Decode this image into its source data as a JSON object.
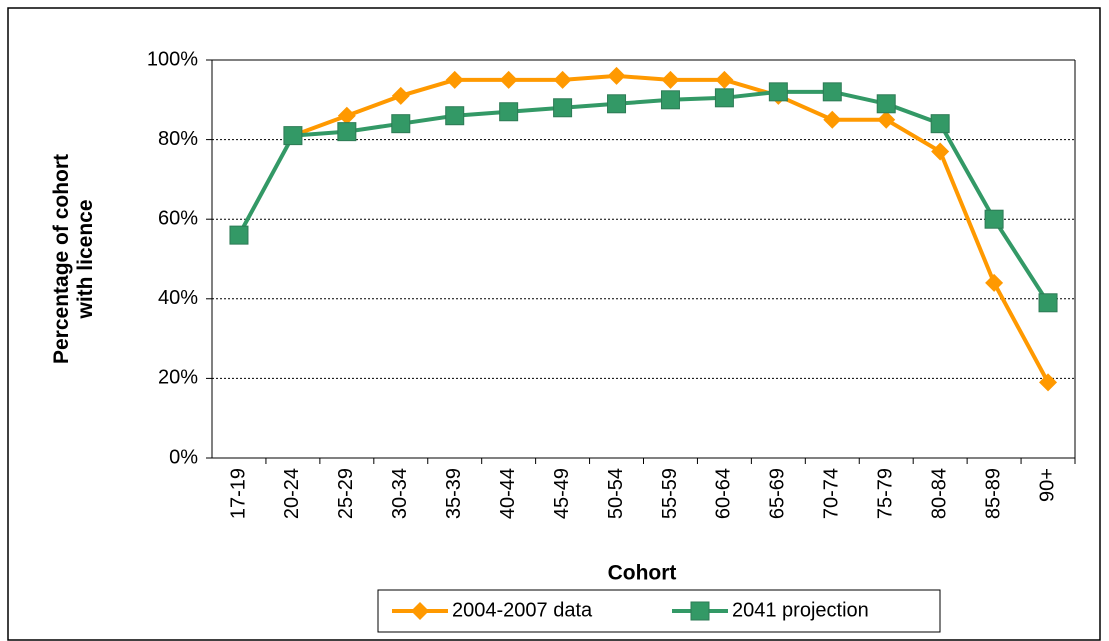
{
  "chart_data": {
    "type": "line",
    "x_label": "Cohort",
    "y_label": "Percentage of cohort with licence",
    "categories": [
      "17-19",
      "20-24",
      "25-29",
      "30-34",
      "35-39",
      "40-44",
      "45-49",
      "50-54",
      "55-59",
      "60-64",
      "65-69",
      "70-74",
      "75-79",
      "80-84",
      "85-89",
      "90+"
    ],
    "series": [
      {
        "name": "2004-2007 data",
        "color": "#ff9900",
        "marker": "diamond",
        "values": [
          null,
          81,
          86,
          91,
          95,
          95,
          95,
          96,
          95,
          95,
          91,
          85,
          85,
          77,
          44,
          19
        ]
      },
      {
        "name": "2041 projection",
        "color": "#339966",
        "marker": "square",
        "values": [
          56,
          81,
          82,
          84,
          86,
          87,
          88,
          89,
          90,
          90.5,
          92,
          92,
          89,
          84,
          60,
          39
        ]
      }
    ],
    "ylim": [
      0,
      100
    ],
    "yticks": [
      {
        "value": 0,
        "label": "0%"
      },
      {
        "value": 20,
        "label": "20%"
      },
      {
        "value": 40,
        "label": "40%"
      },
      {
        "value": 60,
        "label": "60%"
      },
      {
        "value": 80,
        "label": "80%"
      },
      {
        "value": 100,
        "label": "100%"
      }
    ],
    "grid": true,
    "legend": "bottom"
  }
}
